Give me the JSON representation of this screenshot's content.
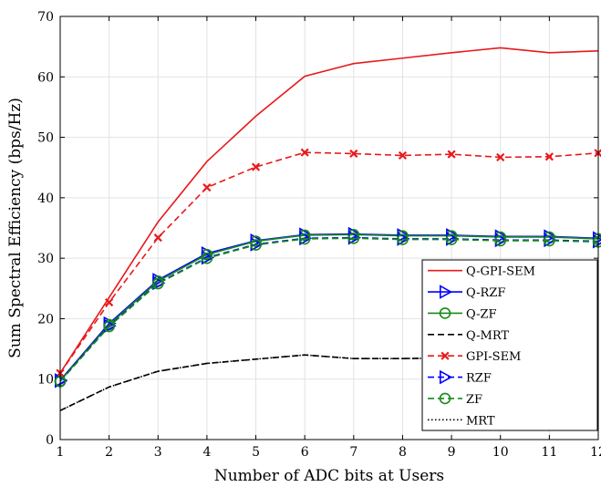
{
  "chart_data": {
    "type": "line",
    "title": "",
    "xlabel": "Number of ADC bits at Users",
    "ylabel": "Sum Spectral Efficiency (bps/Hz)",
    "xlim": [
      1,
      12
    ],
    "ylim": [
      0,
      70
    ],
    "xticks": [
      1,
      2,
      3,
      4,
      5,
      6,
      7,
      8,
      9,
      10,
      11,
      12
    ],
    "yticks": [
      0,
      10,
      20,
      30,
      40,
      50,
      60,
      70
    ],
    "grid": true,
    "legend_position": "right",
    "x": [
      1,
      2,
      3,
      4,
      5,
      6,
      7,
      8,
      9,
      10,
      11,
      12
    ],
    "series": [
      {
        "name": "Q-GPI-SEM",
        "values": [
          11.0,
          23.5,
          36.0,
          46.0,
          53.5,
          60.1,
          62.2,
          63.1,
          64.0,
          64.8,
          64.0,
          64.3
        ],
        "color": "#e8191c",
        "dash": "solid",
        "marker": "none"
      },
      {
        "name": "Q-RZF",
        "values": [
          9.8,
          19.2,
          26.4,
          30.8,
          32.9,
          33.9,
          34.0,
          33.8,
          33.8,
          33.6,
          33.6,
          33.3
        ],
        "color": "#0000ff",
        "dash": "solid",
        "marker": "triangle-right"
      },
      {
        "name": "Q-ZF",
        "values": [
          9.7,
          19.0,
          26.2,
          30.6,
          32.8,
          33.8,
          33.9,
          33.7,
          33.7,
          33.5,
          33.5,
          33.2
        ],
        "color": "#178a1a",
        "dash": "solid",
        "marker": "circle"
      },
      {
        "name": "Q-MRT",
        "values": [
          4.8,
          8.7,
          11.3,
          12.6,
          13.3,
          14.0,
          13.4,
          13.4,
          13.5,
          13.4,
          13.4,
          13.3
        ],
        "color": "#000000",
        "dash": "dashed",
        "marker": "none"
      },
      {
        "name": "GPI-SEM",
        "values": [
          11.0,
          22.7,
          33.4,
          41.7,
          45.1,
          47.5,
          47.3,
          47.0,
          47.2,
          46.7,
          46.8,
          47.4
        ],
        "color": "#e8191c",
        "dash": "dashed",
        "marker": "x"
      },
      {
        "name": "RZF",
        "values": [
          9.7,
          18.8,
          25.9,
          30.1,
          32.3,
          33.3,
          33.4,
          33.2,
          33.2,
          33.0,
          33.0,
          32.8
        ],
        "color": "#0000ff",
        "dash": "dashed",
        "marker": "triangle-right"
      },
      {
        "name": "ZF",
        "values": [
          9.6,
          18.7,
          25.8,
          30.0,
          32.2,
          33.2,
          33.3,
          33.1,
          33.1,
          32.9,
          32.9,
          32.7
        ],
        "color": "#178a1a",
        "dash": "dashed",
        "marker": "circle"
      },
      {
        "name": "MRT",
        "values": [
          4.8,
          8.7,
          11.3,
          12.6,
          13.3,
          14.0,
          13.4,
          13.4,
          13.5,
          13.4,
          13.4,
          13.3
        ],
        "color": "#000000",
        "dash": "dotted",
        "marker": "none"
      }
    ]
  }
}
